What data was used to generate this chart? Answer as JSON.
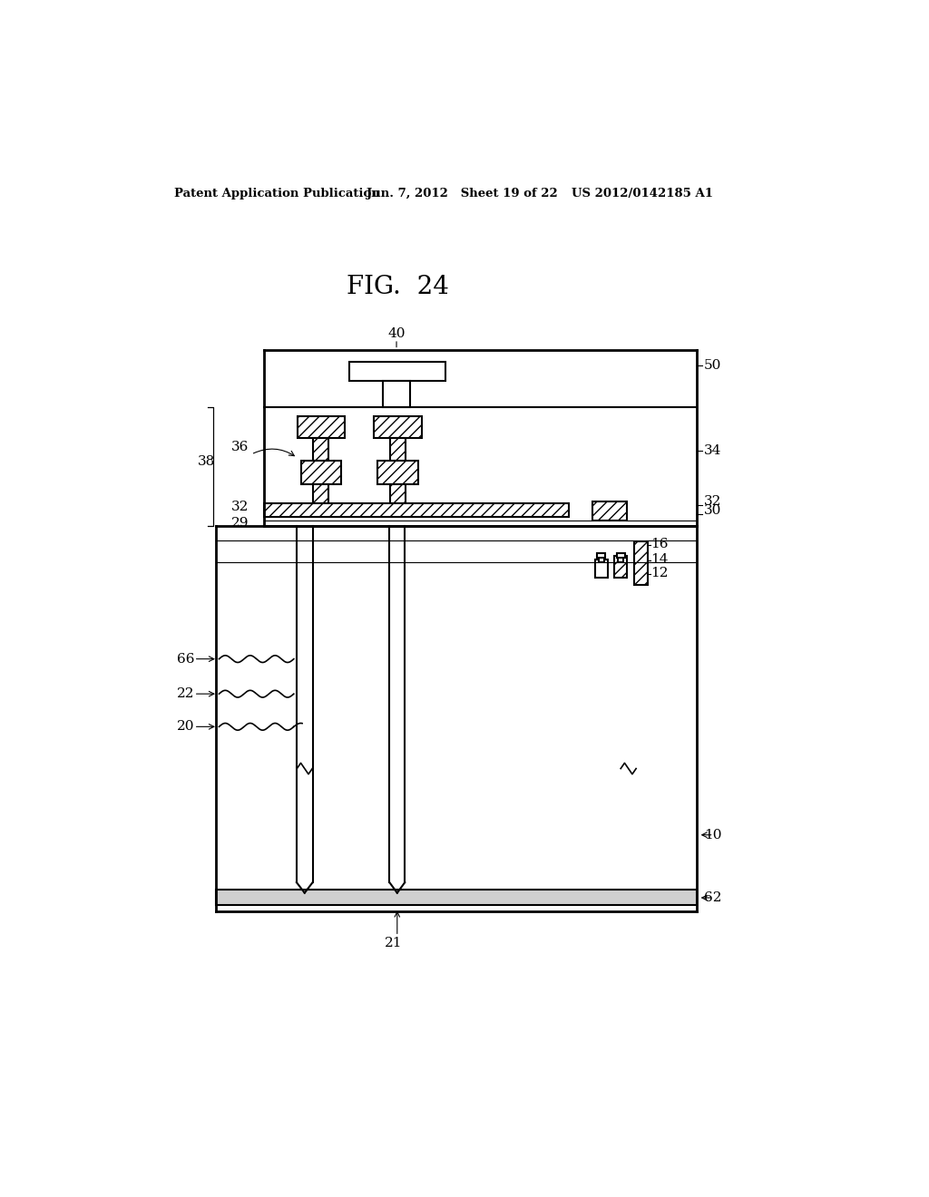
{
  "bg_color": "#ffffff",
  "title": "FIG.  24",
  "header_left": "Patent Application Publication",
  "header_mid": "Jun. 7, 2012   Sheet 19 of 22",
  "header_right": "US 2012/0142185 A1",
  "fig_width": 10.24,
  "fig_height": 13.2
}
